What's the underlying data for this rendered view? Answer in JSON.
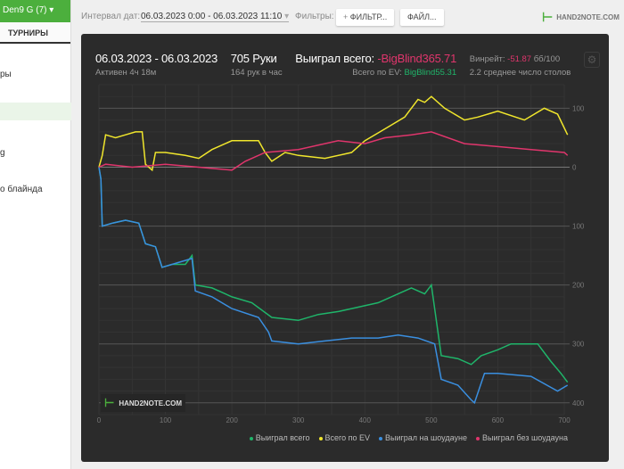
{
  "sidebar": {
    "user": "Den9 G (7)",
    "tab": "ТУРНИРЫ",
    "items": [
      "ры",
      "",
      "g",
      "о блайнда"
    ]
  },
  "topbar": {
    "interval_label": "Интервал дат:",
    "interval_value": "06.03.2023 0:00 - 06.03.2023 11:10",
    "filters_label": "Фильтры:",
    "filter_button": "ФИЛЬТР...",
    "file_button": "ФАЙЛ...",
    "logo": "HAND2NOTE.COM"
  },
  "stats": {
    "date_range": "06.03.2023 - 06.03.2023",
    "active": "Активен 4ч 18м",
    "hands": "705 Руки",
    "hands_per_hour": "164 рук в час",
    "won_label": "Выиграл всего:",
    "won_value": "-BigBlind365.71",
    "ev_label": "Всего по EV:",
    "ev_value": "BigBlind55.31",
    "winrate_label": "Винрейт:",
    "winrate_value": "-51.87",
    "winrate_unit": "бб/100",
    "tables": "2.2 среднее число столов"
  },
  "chart_data": {
    "type": "line",
    "xlim": [
      0,
      700
    ],
    "ylim": [
      -420,
      140
    ],
    "x_ticks": [
      "0",
      "100",
      "200",
      "300",
      "400",
      "500",
      "600",
      "700"
    ],
    "y_ticks": [
      {
        "v": 100,
        "l": "100"
      },
      {
        "v": 0,
        "l": "0"
      },
      {
        "v": -100,
        "l": "100"
      },
      {
        "v": -200,
        "l": "200"
      },
      {
        "v": -300,
        "l": "300"
      },
      {
        "v": -400,
        "l": "400"
      }
    ],
    "watermark": "HAND2NOTE.COM",
    "series": [
      {
        "name": "Выиграл всего",
        "color": "#1fb56a",
        "points": [
          [
            0,
            0
          ],
          [
            3,
            -20
          ],
          [
            5,
            -100
          ],
          [
            20,
            -95
          ],
          [
            40,
            -90
          ],
          [
            60,
            -95
          ],
          [
            70,
            -130
          ],
          [
            85,
            -135
          ],
          [
            95,
            -170
          ],
          [
            110,
            -165
          ],
          [
            130,
            -165
          ],
          [
            140,
            -150
          ],
          [
            145,
            -200
          ],
          [
            170,
            -205
          ],
          [
            200,
            -220
          ],
          [
            230,
            -230
          ],
          [
            260,
            -255
          ],
          [
            300,
            -260
          ],
          [
            330,
            -250
          ],
          [
            360,
            -245
          ],
          [
            380,
            -240
          ],
          [
            420,
            -230
          ],
          [
            450,
            -215
          ],
          [
            470,
            -205
          ],
          [
            490,
            -215
          ],
          [
            500,
            -200
          ],
          [
            505,
            -240
          ],
          [
            515,
            -320
          ],
          [
            540,
            -325
          ],
          [
            560,
            -335
          ],
          [
            575,
            -320
          ],
          [
            600,
            -310
          ],
          [
            620,
            -300
          ],
          [
            660,
            -300
          ],
          [
            680,
            -330
          ],
          [
            695,
            -350
          ],
          [
            705,
            -365
          ]
        ]
      },
      {
        "name": "Всего по EV",
        "color": "#f0e62c",
        "points": [
          [
            0,
            0
          ],
          [
            5,
            20
          ],
          [
            10,
            55
          ],
          [
            25,
            50
          ],
          [
            40,
            55
          ],
          [
            55,
            60
          ],
          [
            65,
            60
          ],
          [
            70,
            5
          ],
          [
            80,
            -5
          ],
          [
            85,
            25
          ],
          [
            100,
            25
          ],
          [
            130,
            20
          ],
          [
            150,
            15
          ],
          [
            170,
            30
          ],
          [
            200,
            45
          ],
          [
            240,
            45
          ],
          [
            250,
            25
          ],
          [
            260,
            10
          ],
          [
            280,
            25
          ],
          [
            300,
            20
          ],
          [
            340,
            15
          ],
          [
            380,
            25
          ],
          [
            400,
            45
          ],
          [
            430,
            65
          ],
          [
            460,
            85
          ],
          [
            480,
            115
          ],
          [
            490,
            110
          ],
          [
            500,
            120
          ],
          [
            520,
            100
          ],
          [
            550,
            80
          ],
          [
            570,
            85
          ],
          [
            600,
            95
          ],
          [
            640,
            80
          ],
          [
            670,
            100
          ],
          [
            690,
            90
          ],
          [
            705,
            55
          ]
        ]
      },
      {
        "name": "Выиграл на шоудауне",
        "color": "#3a8fe0",
        "points": [
          [
            0,
            0
          ],
          [
            3,
            -20
          ],
          [
            5,
            -100
          ],
          [
            20,
            -95
          ],
          [
            40,
            -90
          ],
          [
            60,
            -95
          ],
          [
            70,
            -130
          ],
          [
            85,
            -135
          ],
          [
            95,
            -170
          ],
          [
            110,
            -165
          ],
          [
            140,
            -155
          ],
          [
            145,
            -210
          ],
          [
            170,
            -220
          ],
          [
            200,
            -240
          ],
          [
            240,
            -255
          ],
          [
            255,
            -280
          ],
          [
            260,
            -295
          ],
          [
            300,
            -300
          ],
          [
            340,
            -295
          ],
          [
            380,
            -290
          ],
          [
            420,
            -290
          ],
          [
            450,
            -285
          ],
          [
            480,
            -290
          ],
          [
            505,
            -300
          ],
          [
            515,
            -360
          ],
          [
            540,
            -370
          ],
          [
            560,
            -395
          ],
          [
            565,
            -400
          ],
          [
            580,
            -350
          ],
          [
            600,
            -350
          ],
          [
            650,
            -355
          ],
          [
            690,
            -380
          ],
          [
            705,
            -370
          ]
        ]
      },
      {
        "name": "Выиграл без шоудауна",
        "color": "#e0356c",
        "points": [
          [
            0,
            0
          ],
          [
            10,
            5
          ],
          [
            50,
            0
          ],
          [
            100,
            5
          ],
          [
            150,
            0
          ],
          [
            200,
            -5
          ],
          [
            220,
            10
          ],
          [
            250,
            25
          ],
          [
            300,
            30
          ],
          [
            360,
            45
          ],
          [
            400,
            40
          ],
          [
            430,
            50
          ],
          [
            470,
            55
          ],
          [
            500,
            60
          ],
          [
            550,
            40
          ],
          [
            600,
            35
          ],
          [
            650,
            30
          ],
          [
            700,
            25
          ],
          [
            705,
            20
          ]
        ]
      }
    ]
  }
}
